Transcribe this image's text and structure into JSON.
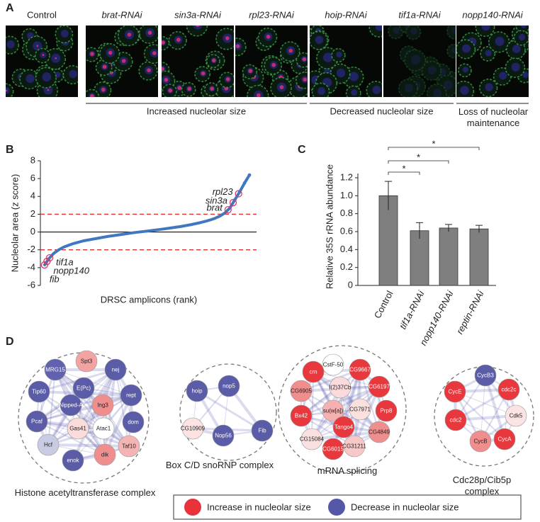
{
  "panel_labels": [
    "A",
    "B",
    "C",
    "D"
  ],
  "microscopy": {
    "images": [
      "Control",
      "brat-RNAi",
      "sin3a-RNAi",
      "rpl23-RNAi",
      "hoip-RNAi",
      "tif1a-RNAi",
      "nopp140-RNAi"
    ],
    "groups": [
      "Increased nucleolar size",
      "Decreased nucleolar size",
      "Loss of nucleolar maintenance"
    ]
  },
  "chart_data": [
    {
      "type": "line",
      "y_label": "Nucleolar area (z score)",
      "x_label": "DRSC amplicons (rank)",
      "values": [
        -3.8,
        -3.0,
        -2.4,
        -2.0,
        -1.7,
        -1.5,
        -1.3,
        -1.15,
        -1.0,
        -0.9,
        -0.8,
        -0.7,
        -0.6,
        -0.5,
        -0.42,
        -0.34,
        -0.26,
        -0.18,
        -0.1,
        -0.03,
        0.03,
        0.1,
        0.17,
        0.24,
        0.31,
        0.38,
        0.46,
        0.54,
        0.62,
        0.72,
        0.82,
        0.94,
        1.06,
        1.2,
        1.36,
        1.55,
        1.8,
        2.15,
        2.7,
        3.6,
        4.5,
        5.5,
        6.4
      ],
      "color": "#3f78c0",
      "ylim": [
        -6,
        8
      ],
      "yticks": [
        -6,
        -4,
        -2,
        0,
        2,
        4,
        6,
        8
      ],
      "threshold_lines": [
        2,
        -2
      ],
      "threshold_color": "#e0312f",
      "highlights": [
        {
          "label": "rpl23",
          "value": 4.3
        },
        {
          "label": "sin3a",
          "value": 3.3
        },
        {
          "label": "brat",
          "value": 2.5
        },
        {
          "label": "tif1a",
          "value": -2.9
        },
        {
          "label": "nopp140",
          "value": -3.3
        },
        {
          "label": "fib",
          "value": -3.7
        }
      ],
      "highlight_color": "#d63a6a"
    },
    {
      "type": "bar",
      "y_label": "Relative 35S rRNA abundance",
      "categories": [
        "Control",
        "tif1a-RNAi",
        "nopp140-RNAi",
        "reptin-RNAi"
      ],
      "values": [
        1.0,
        0.61,
        0.64,
        0.63
      ],
      "errors": [
        0.16,
        0.09,
        0.04,
        0.04
      ],
      "color": "#7f7f7f",
      "ylim": [
        0,
        1.2
      ],
      "yticks": [
        0,
        0.2,
        0.4,
        0.6,
        0.8,
        {
          "value": 1,
          "label": "1.0"
        },
        1.2
      ],
      "significance": [
        "*",
        "*",
        "*"
      ]
    }
  ],
  "networks": {
    "clusters": [
      {
        "title": "Histone acetyltransferase complex",
        "nodes": [
          {
            "label": "Spt3",
            "color": "#f4a3a3"
          },
          {
            "label": "nej",
            "color": "#5a5ca8"
          },
          {
            "label": "rept",
            "color": "#5a5ca8"
          },
          {
            "label": "dom",
            "color": "#5a5ca8"
          },
          {
            "label": "Taf10",
            "color": "#f4b4b4"
          },
          {
            "label": "dik",
            "color": "#f08e8e"
          },
          {
            "label": "enok",
            "color": "#5a5ca8"
          },
          {
            "label": "Hcf",
            "color": "#c9cae3"
          },
          {
            "label": "Pcaf",
            "color": "#5a5ca8"
          },
          {
            "label": "Tip60",
            "color": "#5a5ca8"
          },
          {
            "label": "MRG15",
            "color": "#6062ad"
          },
          {
            "label": "E(Pc)",
            "color": "#5a5ca8"
          },
          {
            "label": "Nipped-A",
            "color": "#5a5ca8"
          },
          {
            "label": "Ing3",
            "color": "#f08e8e"
          },
          {
            "label": "Gas41",
            "color": "#fbdcdc"
          },
          {
            "label": "Atac1",
            "color": "#ffffff"
          }
        ]
      },
      {
        "title": "Box C/D snoRNP complex",
        "nodes": [
          {
            "label": "hoip",
            "color": "#5a5ca8"
          },
          {
            "label": "nop5",
            "color": "#5a5ca8"
          },
          {
            "label": "Fib",
            "color": "#5a5ca8"
          },
          {
            "label": "Nop56",
            "color": "#5a5ca8"
          },
          {
            "label": "CG10909",
            "color": "#fbe3e3"
          }
        ]
      },
      {
        "title": "mRNA splicing",
        "nodes": [
          {
            "label": "CstF-50",
            "color": "#ffffff"
          },
          {
            "label": "CG9667",
            "color": "#e8383d"
          },
          {
            "label": "CG6197",
            "color": "#e8383d"
          },
          {
            "label": "Prp8",
            "color": "#e8383d"
          },
          {
            "label": "CG4849",
            "color": "#f08e8e"
          },
          {
            "label": "CG31211",
            "color": "#f8c8c8"
          },
          {
            "label": "CG6015",
            "color": "#e8383d"
          },
          {
            "label": "CG15084",
            "color": "#fbe0e0"
          },
          {
            "label": "Bx42",
            "color": "#e8383d"
          },
          {
            "label": "CG6905",
            "color": "#f08e8e"
          },
          {
            "label": "crn",
            "color": "#e8383d"
          },
          {
            "label": "l(2)37Cb",
            "color": "#fadada"
          },
          {
            "label": "su(w[a])",
            "color": "#f6b0b0"
          },
          {
            "label": "CG7971",
            "color": "#fbe0e0"
          },
          {
            "label": "Tango4",
            "color": "#e8383d"
          }
        ]
      },
      {
        "title": "Cdc28p/Cib5p complex",
        "nodes": [
          {
            "label": "CycB3",
            "color": "#5a5ca8"
          },
          {
            "label": "cdc2c",
            "color": "#e8383d"
          },
          {
            "label": "Cdk5",
            "color": "#fbe3e3"
          },
          {
            "label": "CycA",
            "color": "#e8383d"
          },
          {
            "label": "CycB",
            "color": "#f08e8e"
          },
          {
            "label": "cdc2",
            "color": "#e8383d"
          },
          {
            "label": "CycE",
            "color": "#e8383d"
          }
        ]
      }
    ],
    "legend": [
      {
        "label": "Increase in nucleolar size",
        "color": "#e8333a"
      },
      {
        "label": "Decrease in nucleolar size",
        "color": "#5558a8"
      }
    ]
  }
}
